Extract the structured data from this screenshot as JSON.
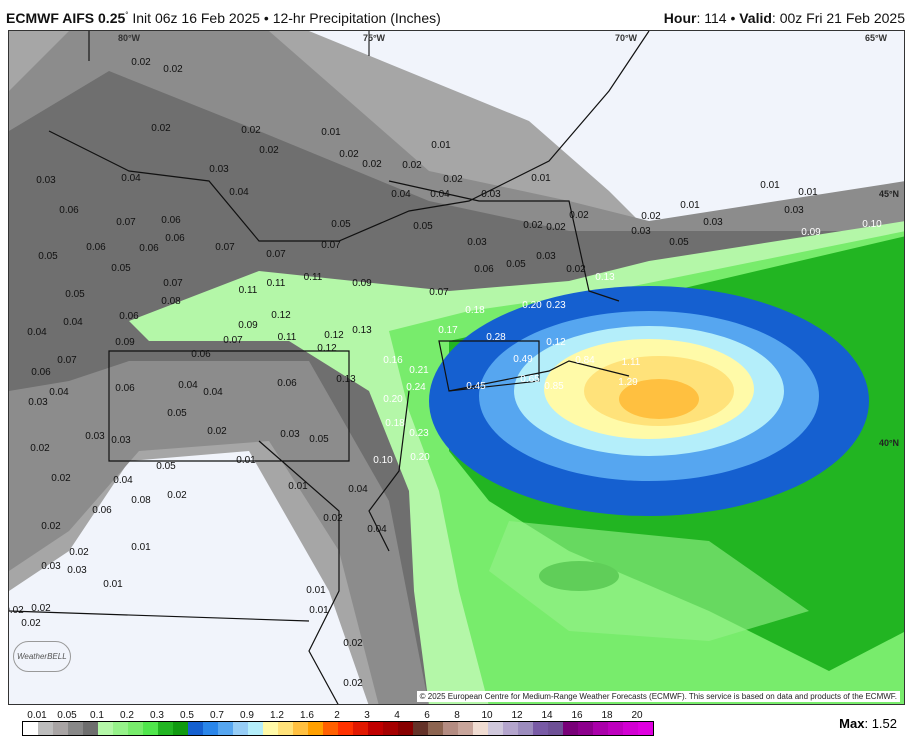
{
  "header": {
    "model": "ECMWF AIFS 0.25",
    "degree": "°",
    "init": " Init 06z 16 Feb 2025 • 12-hr Precipitation (Inches)",
    "hour_label": "Hour",
    "hour": ": 114 • ",
    "valid_label": "Valid",
    "valid": ": 00z Fri 21 Feb 2025"
  },
  "map": {
    "lon_labels": [
      "80°W",
      "75°W",
      "70°W",
      "65°W"
    ],
    "lat_labels": [
      "45°N",
      "40°N"
    ],
    "values": [
      "0.02",
      "0.02",
      "0.02",
      "0.02",
      "0.01",
      "0.02",
      "0.02",
      "0.01",
      "0.02",
      "0.02",
      "0.03",
      "0.03",
      "0.04",
      "0.04",
      "0.04",
      "0.04",
      "0.02",
      "0.03",
      "0.01",
      "0.06",
      "0.07",
      "0.06",
      "0.05",
      "0.05",
      "0.02",
      "0.02",
      "0.02",
      "0.06",
      "0.06",
      "0.06",
      "0.07",
      "0.07",
      "0.07",
      "0.05",
      "0.05",
      "0.03",
      "0.06",
      "0.05",
      "0.03",
      "0.02",
      "0.13",
      "0.07",
      "0.11",
      "0.11",
      "0.11",
      "0.09",
      "0.07",
      "0.05",
      "0.08",
      "0.18",
      "0.20",
      "0.23",
      "0.04",
      "0.04",
      "0.06",
      "0.09",
      "0.12",
      "0.09",
      "0.07",
      "0.11",
      "0.12",
      "0.13",
      "0.12",
      "0.17",
      "0.28",
      "0.12",
      "0.06",
      "0.16",
      "0.21",
      "0.49",
      "0.84",
      "1.11",
      "0.06",
      "0.07",
      "0.06",
      "0.04",
      "0.04",
      "0.06",
      "0.13",
      "0.24",
      "0.45",
      "0.65",
      "0.85",
      "1.29",
      "0.03",
      "0.04",
      "0.05",
      "0.20",
      "0.02",
      "0.03",
      "0.05",
      "0.03",
      "0.03",
      "0.18",
      "0.23",
      "0.02",
      "0.01",
      "0.05",
      "0.10",
      "0.20",
      "0.02",
      "0.04",
      "0.01",
      "0.04",
      "0.08",
      "0.02",
      "0.06",
      "0.02",
      "0.04",
      "0.02",
      "0.01",
      "0.02",
      "0.03",
      "0.03",
      "0.01",
      "0.01",
      "0.02",
      "0.02",
      "0.01",
      "0.02",
      "0.02",
      "0.02",
      "0.10",
      "0.09",
      "0.01",
      "0.01",
      "0.03",
      "0.01",
      "0.02",
      "0.03",
      "0.03",
      "0.05"
    ],
    "copyright": "© 2025 European Centre for Medium-Range Weather Forecasts (ECMWF). This service is based on data and products of the ECMWF.",
    "logo": "WeatherBELL"
  },
  "legend": {
    "labels": [
      "0.01",
      "0.05",
      "0.1",
      "0.2",
      "0.3",
      "0.5",
      "0.7",
      "0.9",
      "1.2",
      "1.6",
      "2",
      "3",
      "4",
      "6",
      "8",
      "10",
      "12",
      "14",
      "16",
      "18",
      "20"
    ],
    "colors": [
      "#ffffff",
      "#bdbdbd",
      "#a8a4a4",
      "#888888",
      "#6e6e6e",
      "#b4f7a8",
      "#96f28a",
      "#78ec6c",
      "#50e64c",
      "#22b522",
      "#109a10",
      "#1560d0",
      "#2a86ea",
      "#56a6f0",
      "#96cdf6",
      "#b4eefa",
      "#fffaa8",
      "#ffe27a",
      "#ffc040",
      "#ffa000",
      "#ff6000",
      "#ff3200",
      "#e11800",
      "#c00000",
      "#a50000",
      "#870000",
      "#643228",
      "#8c6450",
      "#b48c82",
      "#c8a59b",
      "#f0dcd2",
      "#d0c8dc",
      "#b4a5cd",
      "#9c8cbe",
      "#785aa5",
      "#6e5096",
      "#780078",
      "#8c008c",
      "#aa00aa",
      "#be00be",
      "#d200d2",
      "#e000e0"
    ],
    "max_label": "Max",
    "max_value": ": 1.52"
  }
}
